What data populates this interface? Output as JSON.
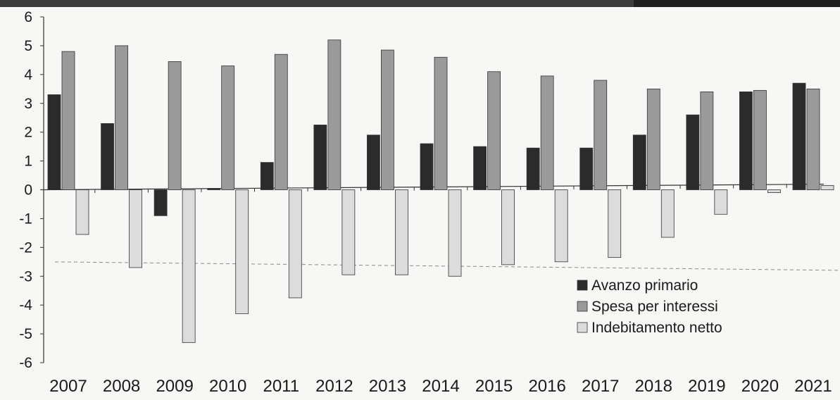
{
  "chart_data": {
    "type": "bar",
    "title": "",
    "xlabel": "",
    "ylabel": "",
    "categories": [
      "2007",
      "2008",
      "2009",
      "2010",
      "2011",
      "2012",
      "2013",
      "2014",
      "2015",
      "2016",
      "2017",
      "2018",
      "2019",
      "2020",
      "2021"
    ],
    "ylim": [
      -6,
      6
    ],
    "yticks": [
      6,
      5,
      4,
      3,
      2,
      1,
      0,
      -1,
      -2,
      -3,
      -4,
      -5,
      -6
    ],
    "grid": false,
    "reference_line": {
      "value": -2.55,
      "style": "dashed"
    },
    "legend": {
      "placement": "bottom-right"
    },
    "series": [
      {
        "name": "Avanzo primario",
        "color": "#2b2b2b",
        "values": [
          3.3,
          2.3,
          -0.9,
          0.05,
          0.95,
          2.25,
          1.9,
          1.6,
          1.5,
          1.45,
          1.45,
          1.9,
          2.6,
          3.4,
          3.7
        ]
      },
      {
        "name": "Spesa per interessi",
        "color": "#9a9a9a",
        "values": [
          4.8,
          5.0,
          4.45,
          4.3,
          4.7,
          5.2,
          4.85,
          4.6,
          4.1,
          3.95,
          3.8,
          3.5,
          3.4,
          3.45,
          3.5
        ]
      },
      {
        "name": "Indebitamento netto",
        "color": "#dcdcdc",
        "values": [
          -1.55,
          -2.7,
          -5.3,
          -4.3,
          -3.75,
          -2.95,
          -2.95,
          -3.0,
          -2.6,
          -2.5,
          -2.35,
          -1.65,
          -0.85,
          -0.1,
          0.15
        ]
      }
    ]
  }
}
